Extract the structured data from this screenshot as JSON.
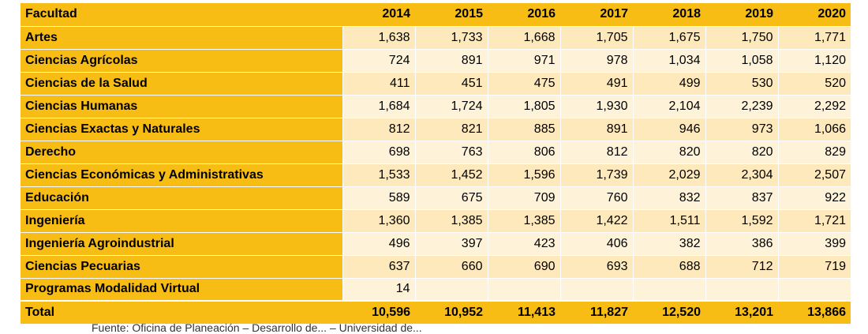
{
  "table": {
    "header": {
      "faculty_label": "Facultad",
      "years": [
        "2014",
        "2015",
        "2016",
        "2017",
        "2018",
        "2019",
        "2020"
      ]
    },
    "rows": [
      {
        "faculty": "Artes",
        "values": [
          "1,638",
          "1,733",
          "1,668",
          "1,705",
          "1,675",
          "1,750",
          "1,771"
        ]
      },
      {
        "faculty": "Ciencias Agrícolas",
        "values": [
          "724",
          "891",
          "971",
          "978",
          "1,034",
          "1,058",
          "1,120"
        ]
      },
      {
        "faculty": "Ciencias de la Salud",
        "values": [
          "411",
          "451",
          "475",
          "491",
          "499",
          "530",
          "520"
        ]
      },
      {
        "faculty": "Ciencias Humanas",
        "values": [
          "1,684",
          "1,724",
          "1,805",
          "1,930",
          "2,104",
          "2,239",
          "2,292"
        ]
      },
      {
        "faculty": "Ciencias Exactas y Naturales",
        "values": [
          "812",
          "821",
          "885",
          "891",
          "946",
          "973",
          "1,066"
        ]
      },
      {
        "faculty": "Derecho",
        "values": [
          "698",
          "763",
          "806",
          "812",
          "820",
          "820",
          "829"
        ]
      },
      {
        "faculty": "Ciencias Económicas y Administrativas",
        "values": [
          "1,533",
          "1,452",
          "1,596",
          "1,739",
          "2,029",
          "2,304",
          "2,507"
        ]
      },
      {
        "faculty": "Educación",
        "values": [
          "589",
          "675",
          "709",
          "760",
          "832",
          "837",
          "922"
        ]
      },
      {
        "faculty": "Ingeniería",
        "values": [
          "1,360",
          "1,385",
          "1,385",
          "1,422",
          "1,511",
          "1,592",
          "1,721"
        ]
      },
      {
        "faculty": "Ingeniería Agroindustrial",
        "values": [
          "496",
          "397",
          "423",
          "406",
          "382",
          "386",
          "399"
        ]
      },
      {
        "faculty": "Ciencias Pecuarias",
        "values": [
          "637",
          "660",
          "690",
          "693",
          "688",
          "712",
          "719"
        ]
      },
      {
        "faculty": "Programas Modalidad Virtual",
        "values": [
          "14",
          "",
          "",
          "",
          "",
          "",
          ""
        ]
      }
    ],
    "total": {
      "label": "Total",
      "values": [
        "10,596",
        "10,952",
        "11,413",
        "11,827",
        "12,520",
        "13,201",
        "13,866"
      ]
    }
  },
  "footnote": "Fuente: Oficina de Planeación – Desarrollo de... – Universidad de..."
}
